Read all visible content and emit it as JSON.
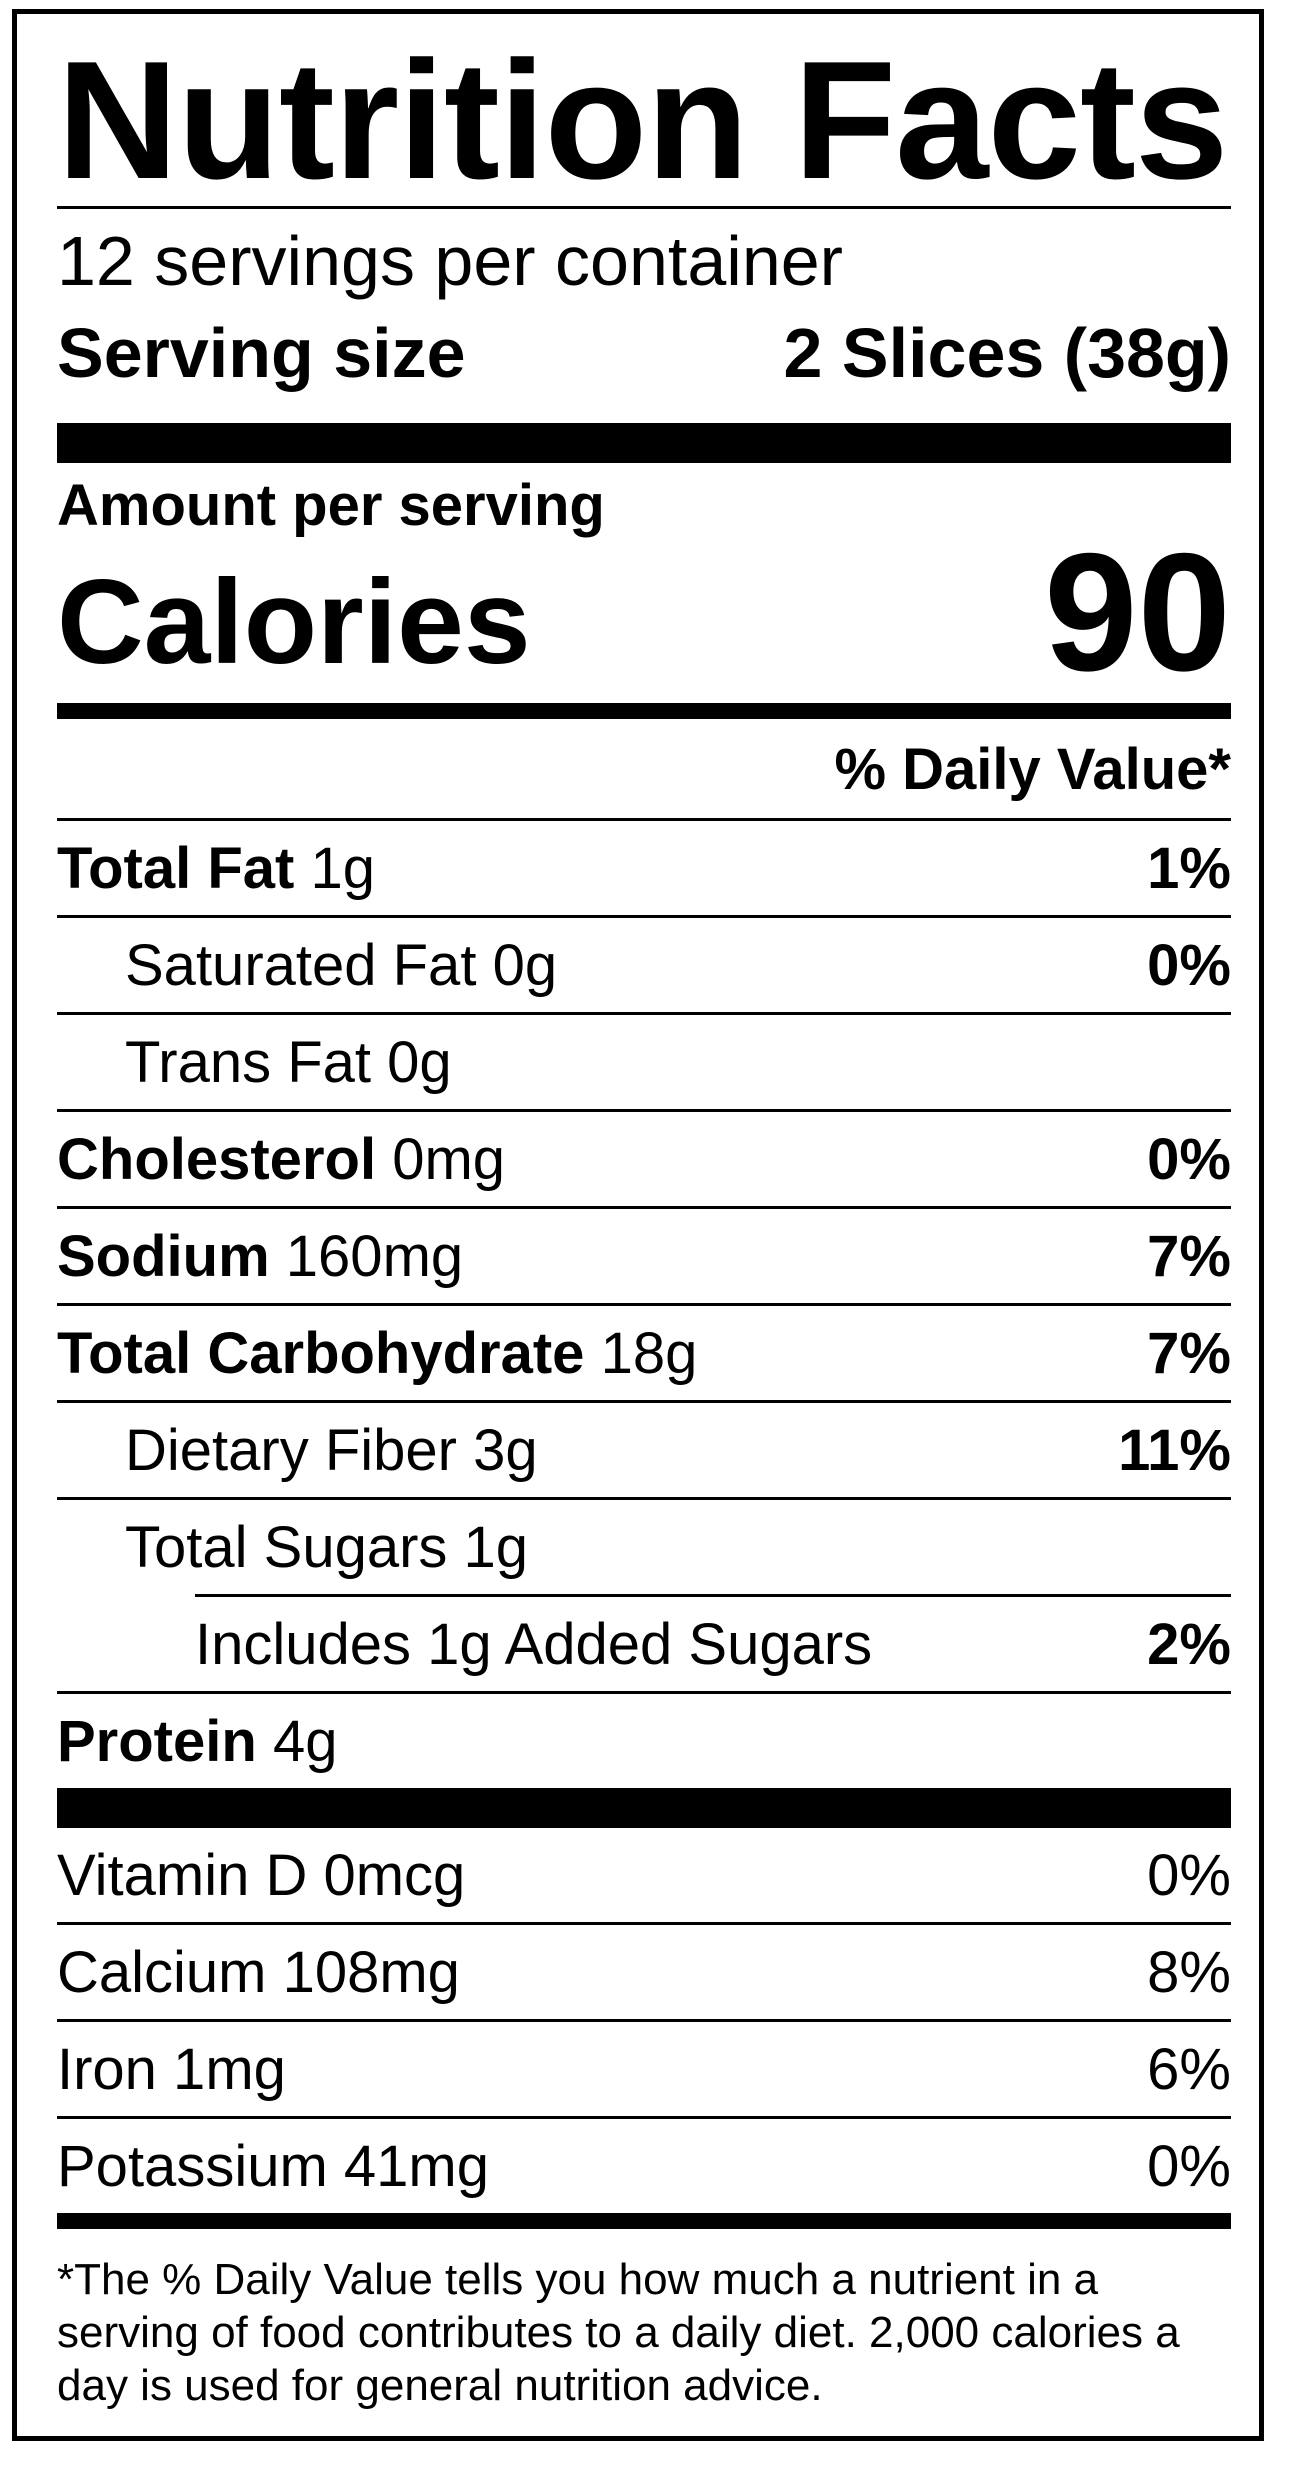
{
  "title": "Nutrition Facts",
  "servings_per_container": "12 servings per container",
  "serving_size": {
    "label": "Serving size",
    "value": "2 Slices (38g)"
  },
  "amount_per_serving": "Amount per serving",
  "calories": {
    "label": "Calories",
    "value": "90"
  },
  "daily_value_header": "% Daily Value*",
  "nutrients": [
    {
      "name": "Total Fat",
      "amount": "1g",
      "dv": "1%"
    },
    {
      "name": "Saturated Fat",
      "amount": "0g",
      "dv": "0%"
    },
    {
      "name": "Trans Fat",
      "amount": "0g",
      "dv": ""
    },
    {
      "name": "Cholesterol",
      "amount": "0mg",
      "dv": "0%"
    },
    {
      "name": "Sodium",
      "amount": "160mg",
      "dv": "7%"
    },
    {
      "name": "Total Carbohydrate",
      "amount": "18g",
      "dv": "7%"
    },
    {
      "name": "Dietary Fiber",
      "amount": "3g",
      "dv": "11%"
    },
    {
      "name": "Total Sugars",
      "amount": "1g",
      "dv": ""
    },
    {
      "name": "Includes 1g Added Sugars",
      "amount": "",
      "dv": "2%"
    },
    {
      "name": "Protein",
      "amount": "4g",
      "dv": ""
    }
  ],
  "vitamins": [
    {
      "name": "Vitamin D 0mcg",
      "dv": "0%"
    },
    {
      "name": "Calcium 108mg",
      "dv": "8%"
    },
    {
      "name": "Iron 1mg",
      "dv": "6%"
    },
    {
      "name": "Potassium 41mg",
      "dv": "0%"
    }
  ],
  "footnote": "*The % Daily Value tells you how much a nutrient in a serving of food contributes to a daily diet. 2,000 calories a day is used for general nutrition advice."
}
